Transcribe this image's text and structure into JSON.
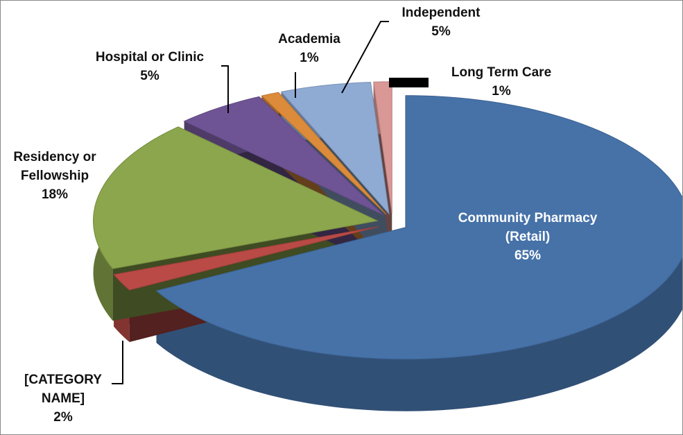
{
  "chart_data": {
    "type": "pie",
    "categories": [
      "Community Pharmacy (Retail)",
      "[CATEGORY NAME]",
      "Residency or Fellowship",
      "Hospital or Clinic",
      "Academia",
      "Independent",
      "Long Term Care"
    ],
    "values": [
      65,
      2,
      18,
      5,
      1,
      5,
      1
    ],
    "value_labels": [
      "65%",
      "2%",
      "18%",
      "5%",
      "1%",
      "5%",
      "1%"
    ],
    "colors": [
      "#4672a8",
      "#b94a46",
      "#8ba64c",
      "#6f5495",
      "#dc8b3b",
      "#8fabd4",
      "#d99795"
    ]
  }
}
